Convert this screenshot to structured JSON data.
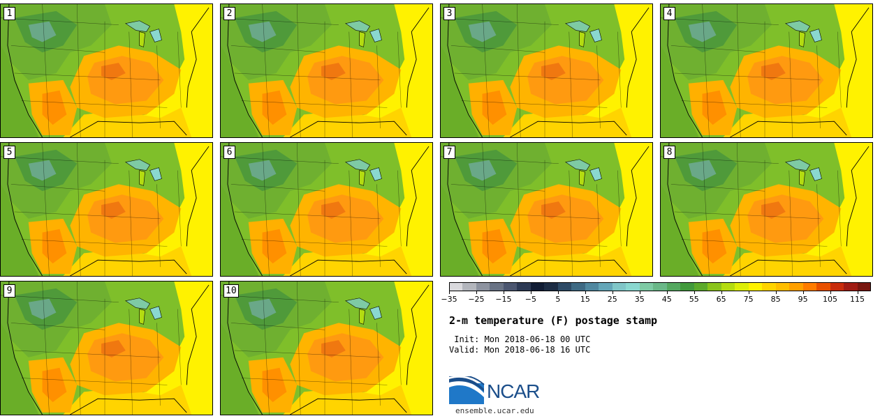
{
  "chart_data": {
    "type": "heatmap",
    "variable": "2-m temperature (F)",
    "title": "2-m temperature (F) postage stamp",
    "init": "Init: Mon 2018-06-18 00 UTC",
    "valid": "Valid: Mon 2018-06-18 16 UTC",
    "members": [
      1,
      2,
      3,
      4,
      5,
      6,
      7,
      8,
      9,
      10
    ],
    "colorbar": {
      "levels": [
        -35,
        -30,
        -25,
        -20,
        -15,
        -10,
        -5,
        0,
        5,
        10,
        15,
        20,
        25,
        30,
        35,
        40,
        45,
        50,
        55,
        60,
        65,
        70,
        75,
        80,
        85,
        90,
        95,
        100,
        105,
        110,
        115,
        120
      ],
      "tick_labels": [
        "−35",
        "−25",
        "−15",
        "−5",
        "5",
        "15",
        "25",
        "35",
        "45",
        "55",
        "65",
        "75",
        "85",
        "95",
        "105",
        "115"
      ],
      "colors": [
        "#d9d9dd",
        "#b3b6bd",
        "#8d93a0",
        "#697385",
        "#4b5670",
        "#2d3a55",
        "#101c34",
        "#1c2c44",
        "#2d4a66",
        "#3e6a84",
        "#5088a0",
        "#64a6b8",
        "#80c6c8",
        "#8ad8d0",
        "#7ecaa4",
        "#6ab888",
        "#54a860",
        "#429a3c",
        "#5caa2c",
        "#8ac41c",
        "#b4dc10",
        "#dcee08",
        "#fff200",
        "#ffd400",
        "#ffbe00",
        "#ffa000",
        "#ff7c00",
        "#e85000",
        "#c82c0c",
        "#a01c14",
        "#781610"
      ]
    }
  },
  "footer": {
    "url": "ensemble.ucar.edu",
    "logo_text": "NCAR"
  }
}
